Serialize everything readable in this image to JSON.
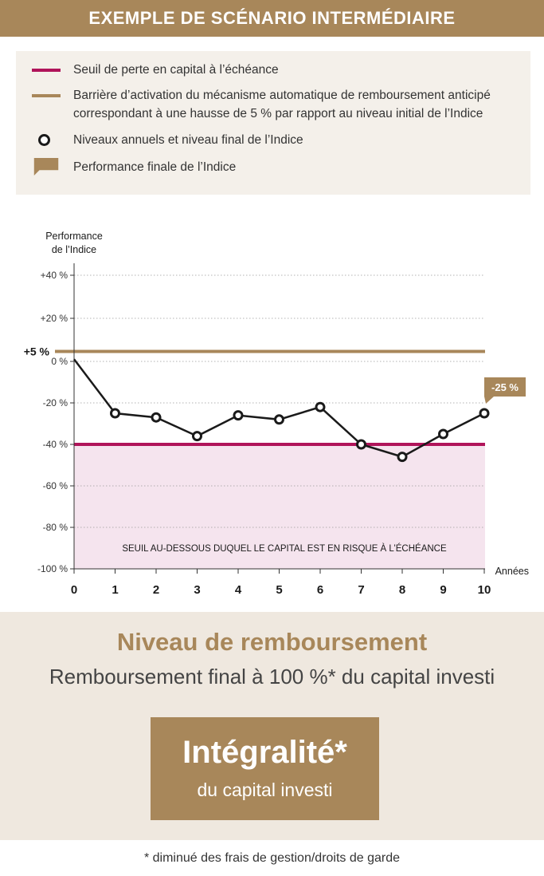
{
  "header": {
    "title": "EXEMPLE DE SCÉNARIO INTERMÉDIAIRE"
  },
  "legend": {
    "items": [
      {
        "symbol": "magenta-line",
        "text": "Seuil de perte en capital à l’échéance"
      },
      {
        "symbol": "tan-line",
        "text": "Barrière d’activation du mécanisme automatique de remboursement anticipé correspondant à une hausse de 5 % par rapport au niveau initial de l’Indice"
      },
      {
        "symbol": "ring-marker",
        "text": "Niveaux annuels et niveau final de l’Indice"
      },
      {
        "symbol": "tan-callout",
        "text": "Performance finale de l’Indice"
      }
    ]
  },
  "colors": {
    "accent": "#a8875a",
    "threshold": "#b0145a",
    "risk_zone": "#f5e4ee",
    "line": "#1a1a1a",
    "legend_bg": "#f4f0ea",
    "result_bg": "#efe8df"
  },
  "chart_data": {
    "type": "line",
    "ylabel": "Performance\nde l’Indice",
    "xlabel": "Années",
    "ylim": [
      -100,
      40
    ],
    "xlim": [
      0,
      10
    ],
    "y_ticks": [
      {
        "value": 40,
        "label": "+40 %"
      },
      {
        "value": 20,
        "label": "+20 %"
      },
      {
        "value": 0,
        "label": "0 %"
      },
      {
        "value": -20,
        "label": "-20 %"
      },
      {
        "value": -40,
        "label": "-40 %"
      },
      {
        "value": -60,
        "label": "-60 %"
      },
      {
        "value": -80,
        "label": "-80 %"
      },
      {
        "value": -100,
        "label": "-100 %"
      }
    ],
    "x_ticks": [
      "0",
      "1",
      "2",
      "3",
      "4",
      "5",
      "6",
      "7",
      "8",
      "9",
      "10"
    ],
    "grid": "horizontal dotted",
    "series": [
      {
        "x": [
          0,
          1,
          2,
          3,
          4,
          5,
          6,
          7,
          8,
          9,
          10
        ],
        "y": [
          1,
          -25,
          -27,
          -36,
          -26,
          -28,
          -22,
          -40,
          -46,
          -35,
          -25
        ]
      }
    ],
    "barrier": {
      "value": 5,
      "label": "+5 %"
    },
    "threshold": {
      "value": -40
    },
    "risk_zone_label": "SEUIL AU-DESSOUS DUQUEL LE CAPITAL EST EN RISQUE À L’ÉCHÉANCE",
    "final_callout": "-25 %"
  },
  "result": {
    "title": "Niveau de remboursement",
    "subtitle": "Remboursement final à 100 %* du capital investi",
    "box_main": "Intégralité*",
    "box_sub": "du capital investi"
  },
  "footnote": "* diminué des frais de gestion/droits de garde"
}
